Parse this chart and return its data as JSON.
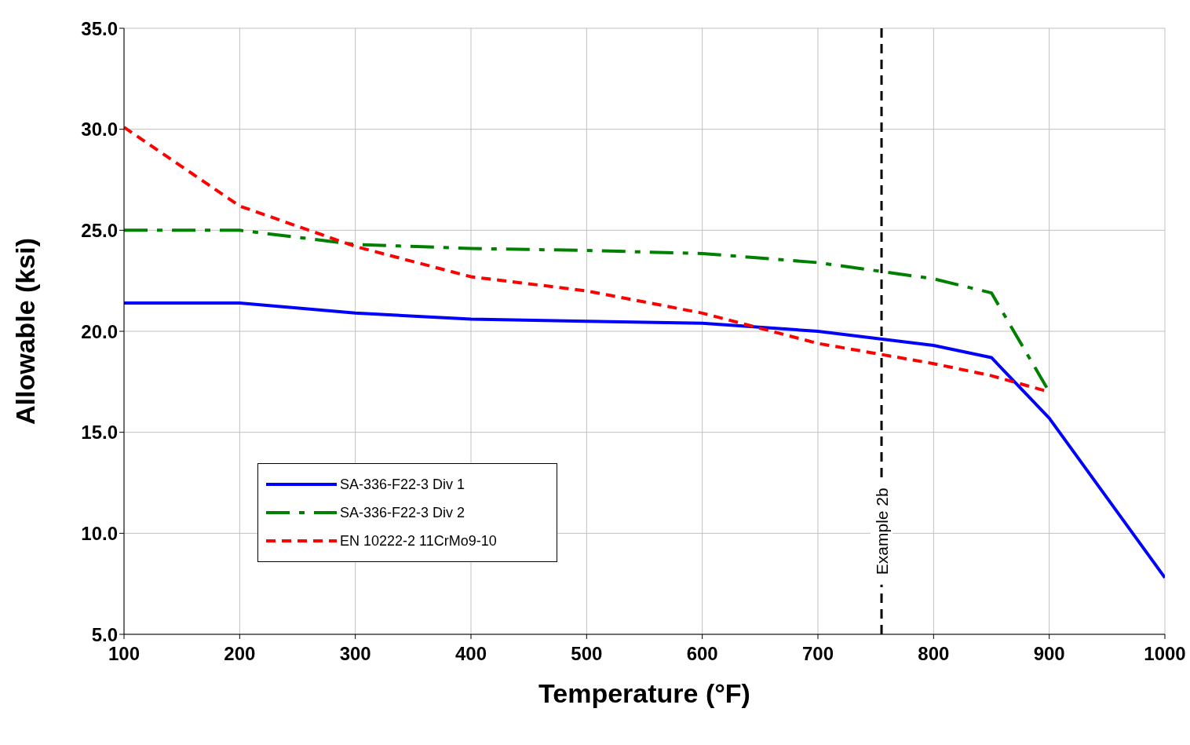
{
  "chart_data": {
    "type": "line",
    "xlabel": "Temperature (°F)",
    "ylabel": "Allowable (ksi)",
    "x": [
      100,
      200,
      300,
      400,
      500,
      600,
      700,
      800,
      850,
      900,
      1000
    ],
    "series": [
      {
        "name": "SA-336-F22-3 Div 1",
        "color": "#0000ff",
        "line_style": "solid",
        "values": [
          21.4,
          21.4,
          20.9,
          20.6,
          20.5,
          20.4,
          20.0,
          19.3,
          18.7,
          15.7,
          7.8
        ]
      },
      {
        "name": "SA-336-F22-3 Div 2",
        "color": "#008000",
        "line_style": "dashdot",
        "values": [
          25.0,
          25.0,
          24.3,
          24.1,
          24.0,
          23.85,
          23.4,
          22.6,
          21.9,
          17.0,
          null
        ]
      },
      {
        "name": "EN 10222-2 11CrMo9-10",
        "color": "#ff0000",
        "line_style": "dashed",
        "values": [
          30.1,
          26.2,
          24.2,
          22.7,
          22.0,
          20.9,
          19.4,
          18.4,
          17.8,
          17.0,
          null
        ]
      }
    ],
    "xlim": [
      100,
      1000
    ],
    "xticks": [
      100,
      200,
      300,
      400,
      500,
      600,
      700,
      800,
      900,
      1000
    ],
    "ylim": [
      5,
      35
    ],
    "yticks": [
      {
        "value": 5,
        "label": "5.0"
      },
      {
        "value": 10,
        "label": "10.0"
      },
      {
        "value": 15,
        "label": "15.0"
      },
      {
        "value": 20,
        "label": "20.0"
      },
      {
        "value": 25,
        "label": "25.0"
      },
      {
        "value": 30,
        "label": "30.0"
      },
      {
        "value": 35,
        "label": "35.0"
      }
    ],
    "ref_lines": [
      {
        "axis": "x",
        "value": 755,
        "label": "Example 2b",
        "color": "#000000",
        "line_style": "dashed"
      }
    ],
    "grid": true,
    "legend": "bottom left",
    "marker": "none"
  }
}
